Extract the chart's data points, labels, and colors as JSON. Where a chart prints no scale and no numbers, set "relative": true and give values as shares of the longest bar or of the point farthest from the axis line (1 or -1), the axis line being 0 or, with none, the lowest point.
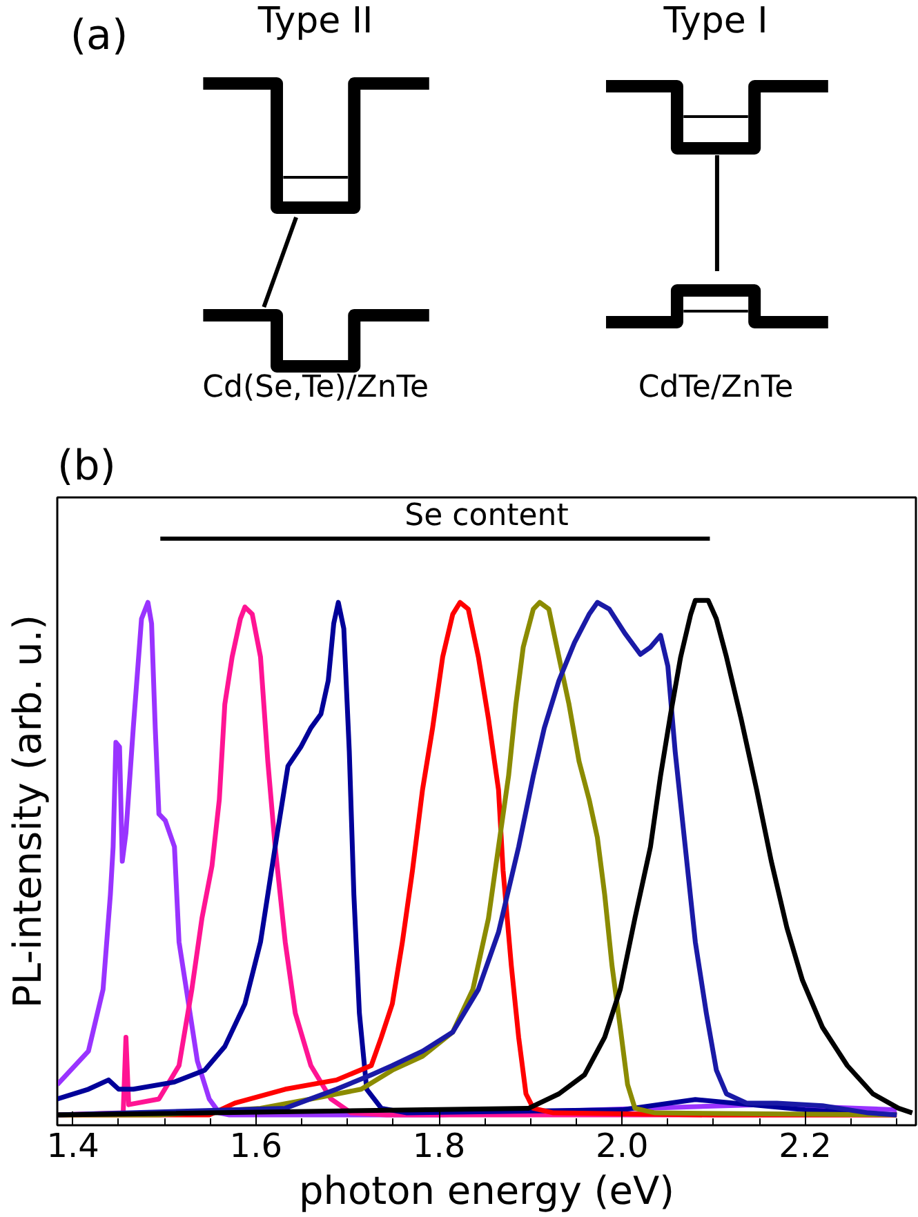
{
  "chart_data": [
    {
      "type": "other",
      "annotations": [
        "(a)",
        "Type II",
        "Type I",
        "Cd(Se,Te)/ZnTe",
        "CdTe/ZnTe"
      ]
    },
    {
      "type": "line",
      "xlabel": "photon energy (eV)",
      "ylabel": "PL-intensity (arb. u.)",
      "relative": true,
      "tick_labels": "x",
      "grid": false,
      "line_style": "solid",
      "xlim": [
        1.383,
        2.321
      ],
      "xticks": [
        1.4,
        1.6,
        1.8,
        {
          "value": 2.0,
          "label": "2.0"
        },
        2.2
      ],
      "annotations": [
        "(b)",
        "Se content"
      ],
      "series": [
        {
          "color": "#9933ff",
          "x": [
            1.383,
            1.417,
            1.433,
            1.441,
            1.444,
            1.447,
            1.451,
            1.454,
            1.458,
            1.466,
            1.475,
            1.482,
            1.486,
            1.49,
            1.494,
            1.501,
            1.511,
            1.516,
            1.524,
            1.536,
            1.549,
            1.56,
            1.571,
            1.605,
            1.8,
            2.15,
            2.3
          ],
          "values": [
            0.059,
            0.124,
            0.244,
            0.428,
            0.521,
            0.724,
            0.715,
            0.493,
            0.548,
            0.752,
            0.964,
            0.996,
            0.955,
            0.752,
            0.585,
            0.572,
            0.521,
            0.336,
            0.244,
            0.105,
            0.031,
            0.004,
            0.0,
            0.0,
            0.0,
            0.02,
            0.01
          ]
        },
        {
          "color": "#ff1493",
          "x": [
            1.383,
            1.455,
            1.458,
            1.461,
            1.494,
            1.516,
            1.53,
            1.541,
            1.552,
            1.56,
            1.566,
            1.574,
            1.583,
            1.588,
            1.596,
            1.605,
            1.613,
            1.621,
            1.632,
            1.643,
            1.66,
            1.682,
            1.704,
            1.743,
            2.3
          ],
          "values": [
            0.0,
            0.004,
            0.151,
            0.02,
            0.031,
            0.096,
            0.244,
            0.382,
            0.484,
            0.613,
            0.798,
            0.89,
            0.964,
            0.987,
            0.973,
            0.89,
            0.687,
            0.521,
            0.336,
            0.198,
            0.096,
            0.031,
            0.004,
            0.0,
            0.0
          ]
        },
        {
          "color": "#000099",
          "x": [
            1.383,
            1.417,
            1.439,
            1.45,
            1.466,
            1.511,
            1.544,
            1.566,
            1.588,
            1.605,
            1.621,
            1.635,
            1.649,
            1.66,
            1.671,
            1.679,
            1.685,
            1.69,
            1.696,
            1.702,
            1.707,
            1.713,
            1.721,
            1.737,
            1.765,
            2.0,
            2.08,
            2.2,
            2.3
          ],
          "values": [
            0.031,
            0.05,
            0.068,
            0.05,
            0.05,
            0.064,
            0.087,
            0.133,
            0.216,
            0.336,
            0.521,
            0.678,
            0.715,
            0.752,
            0.779,
            0.844,
            0.955,
            0.996,
            0.945,
            0.706,
            0.428,
            0.198,
            0.05,
            0.013,
            0.004,
            0.01,
            0.03,
            0.01,
            0.0
          ]
        },
        {
          "color": "#ff0000",
          "x": [
            1.383,
            1.549,
            1.577,
            1.632,
            1.688,
            1.726,
            1.737,
            1.749,
            1.76,
            1.771,
            1.782,
            1.793,
            1.804,
            1.815,
            1.823,
            1.832,
            1.843,
            1.854,
            1.865,
            1.87,
            1.879,
            1.887,
            1.895,
            1.903,
            1.925,
            2.1,
            2.3
          ],
          "values": [
            0.0,
            0.0,
            0.023,
            0.05,
            0.068,
            0.096,
            0.151,
            0.216,
            0.336,
            0.475,
            0.632,
            0.752,
            0.89,
            0.973,
            0.996,
            0.983,
            0.89,
            0.77,
            0.632,
            0.475,
            0.29,
            0.151,
            0.041,
            0.013,
            0.004,
            0.0,
            0.0
          ]
        },
        {
          "color": "#8b8b00",
          "x": [
            1.383,
            1.494,
            1.605,
            1.66,
            1.715,
            1.749,
            1.782,
            1.815,
            1.837,
            1.854,
            1.865,
            1.876,
            1.884,
            1.892,
            1.903,
            1.91,
            1.92,
            1.931,
            1.942,
            1.953,
            1.964,
            1.973,
            1.981,
            1.989,
            1.998,
            2.006,
            2.014,
            2.036,
            2.3
          ],
          "values": [
            0.0,
            0.0,
            0.013,
            0.031,
            0.05,
            0.087,
            0.114,
            0.161,
            0.244,
            0.382,
            0.521,
            0.659,
            0.798,
            0.909,
            0.983,
            0.996,
            0.983,
            0.89,
            0.798,
            0.687,
            0.613,
            0.539,
            0.428,
            0.29,
            0.17,
            0.059,
            0.013,
            0.004,
            0.0
          ]
        },
        {
          "color": "#1a1aa6",
          "x": [
            1.383,
            1.632,
            1.688,
            1.726,
            1.749,
            1.782,
            1.815,
            1.843,
            1.865,
            1.887,
            1.903,
            1.915,
            1.931,
            1.948,
            1.964,
            1.973,
            1.986,
            2.003,
            2.02,
            2.031,
            2.042,
            2.05,
            2.058,
            2.069,
            2.08,
            2.092,
            2.103,
            2.114,
            2.136,
            2.169,
            2.219,
            2.269,
            2.3
          ],
          "values": [
            0.0,
            0.013,
            0.05,
            0.078,
            0.096,
            0.124,
            0.161,
            0.244,
            0.355,
            0.521,
            0.659,
            0.752,
            0.844,
            0.918,
            0.973,
            0.996,
            0.983,
            0.936,
            0.895,
            0.909,
            0.932,
            0.872,
            0.706,
            0.521,
            0.336,
            0.198,
            0.087,
            0.041,
            0.023,
            0.023,
            0.018,
            0.004,
            0.0
          ]
        },
        {
          "color": "#000000",
          "x": [
            1.383,
            1.898,
            1.931,
            1.959,
            1.981,
            1.998,
            2.014,
            2.031,
            2.042,
            2.053,
            2.064,
            2.075,
            2.08,
            2.094,
            2.103,
            2.114,
            2.13,
            2.147,
            2.163,
            2.18,
            2.197,
            2.219,
            2.246,
            2.274,
            2.302,
            2.317
          ],
          "values": [
            0.0,
            0.013,
            0.041,
            0.078,
            0.151,
            0.244,
            0.382,
            0.521,
            0.659,
            0.779,
            0.89,
            0.973,
            1.0,
            1.0,
            0.964,
            0.89,
            0.77,
            0.632,
            0.493,
            0.364,
            0.262,
            0.17,
            0.096,
            0.041,
            0.013,
            0.004
          ]
        }
      ]
    }
  ]
}
